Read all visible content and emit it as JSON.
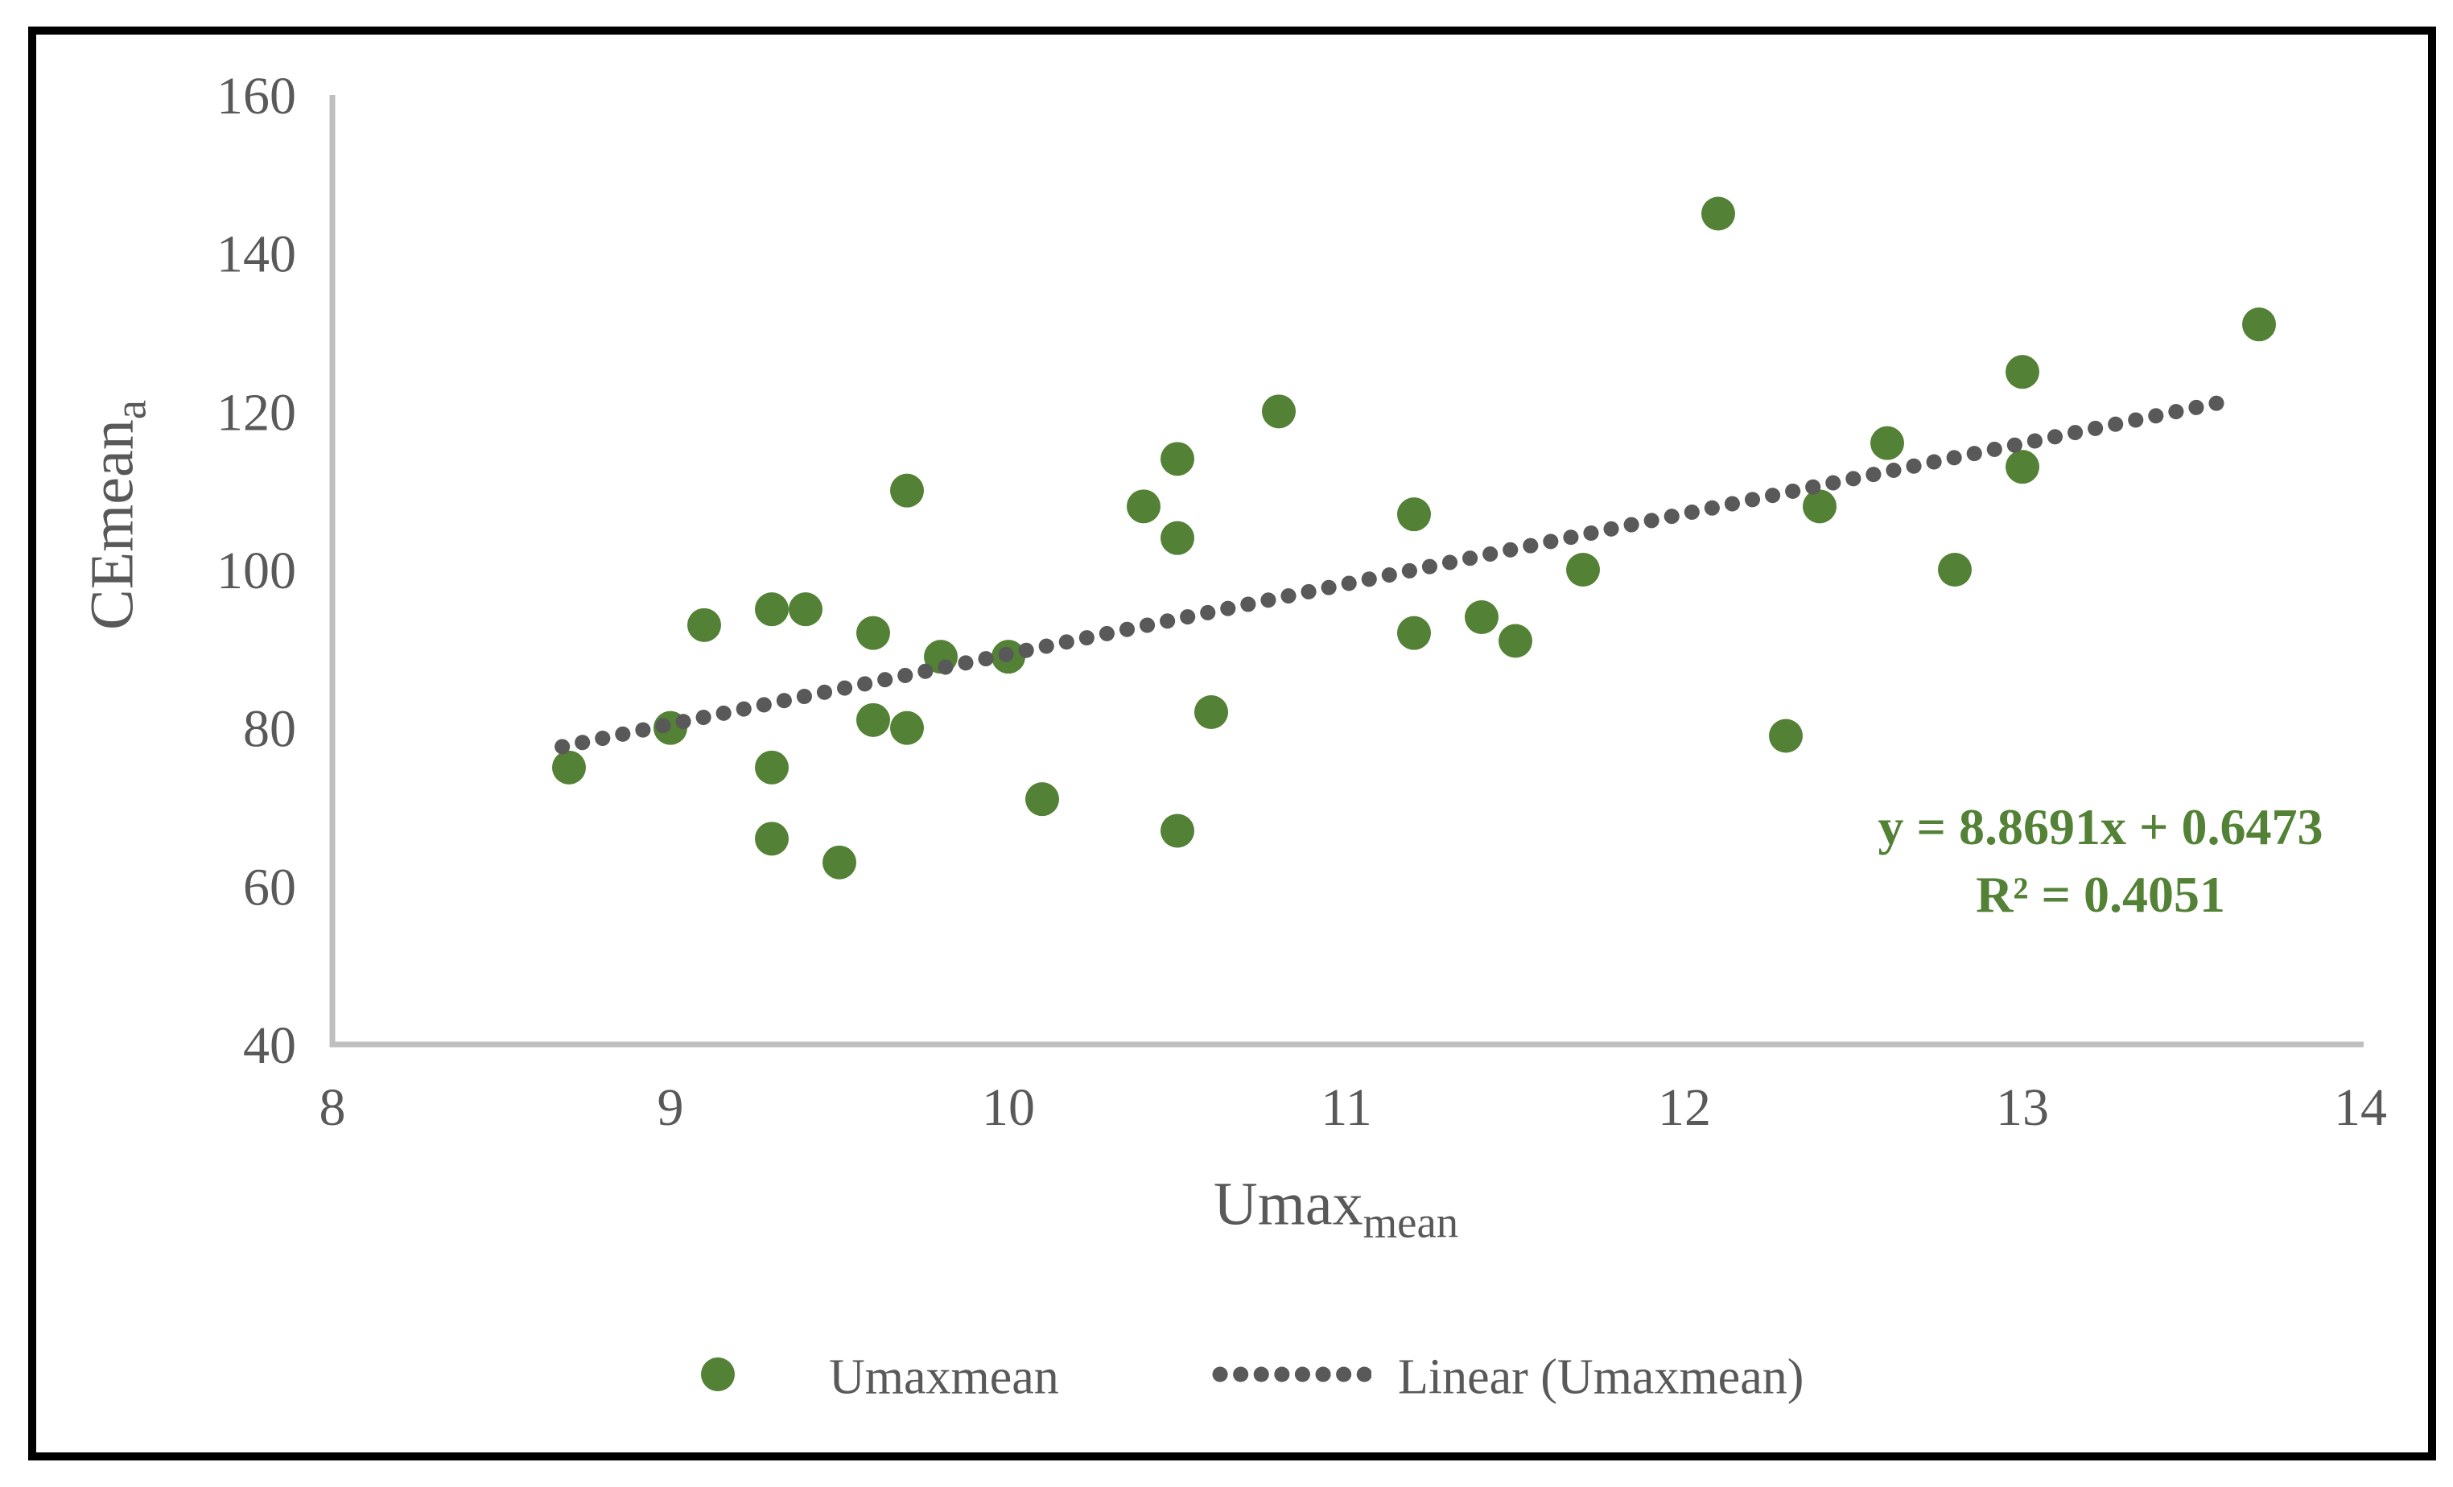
{
  "chart_data": {
    "type": "scatter",
    "title": "",
    "xlabel": {
      "text": "Umax",
      "subscript": "mean"
    },
    "ylabel": {
      "text": "CEmean",
      "subscript": "a"
    },
    "xlim": [
      8,
      14
    ],
    "ylim": [
      40,
      160
    ],
    "x_ticks": [
      "8",
      "9",
      "10",
      "11",
      "12",
      "13",
      "14"
    ],
    "y_ticks": [
      "40",
      "60",
      "80",
      "100",
      "120",
      "140",
      "160"
    ],
    "grid": false,
    "series": [
      {
        "name": "Umaxmean",
        "marker": "circle",
        "color": "#538135",
        "points": [
          [
            8.7,
            75
          ],
          [
            9.0,
            80
          ],
          [
            9.1,
            93
          ],
          [
            9.3,
            95
          ],
          [
            9.3,
            75
          ],
          [
            9.3,
            66
          ],
          [
            9.4,
            95
          ],
          [
            9.5,
            63
          ],
          [
            9.6,
            92
          ],
          [
            9.6,
            81
          ],
          [
            9.7,
            110
          ],
          [
            9.7,
            80
          ],
          [
            9.8,
            89
          ],
          [
            10.0,
            89
          ],
          [
            10.1,
            71
          ],
          [
            10.4,
            108
          ],
          [
            10.5,
            114
          ],
          [
            10.5,
            104
          ],
          [
            10.5,
            67
          ],
          [
            10.6,
            82
          ],
          [
            10.8,
            120
          ],
          [
            11.2,
            107
          ],
          [
            11.2,
            92
          ],
          [
            11.4,
            94
          ],
          [
            11.5,
            91
          ],
          [
            11.7,
            100
          ],
          [
            12.1,
            145
          ],
          [
            12.3,
            79
          ],
          [
            12.4,
            108
          ],
          [
            12.6,
            116
          ],
          [
            12.8,
            100
          ],
          [
            13.0,
            125
          ],
          [
            13.0,
            113
          ],
          [
            13.7,
            131
          ]
        ]
      }
    ],
    "trendline": {
      "label": "Linear (Umaxmean)",
      "style": "dotted",
      "color": "#595959",
      "slope": 8.8691,
      "intercept": 0.6473,
      "r_squared": 0.4051,
      "x_start": 8.68,
      "x_end": 13.62,
      "equation_line1": "y = 8.8691x + 0.6473",
      "equation_line2": "R² = 0.4051"
    },
    "legend": {
      "position": "bottom",
      "items": [
        {
          "label": "Umaxmean",
          "marker": "circle",
          "color": "#538135"
        },
        {
          "label": "Linear (Umaxmean)",
          "marker": "dotted-line",
          "color": "#595959"
        }
      ]
    },
    "colors": {
      "marker": "#538135",
      "trend": "#595959",
      "axis_line": "#BFBFBF",
      "tick_text": "#595959",
      "title_text": "#595959",
      "equation_text": "#538135",
      "frame_border": "#000000",
      "background": "#FFFFFF"
    }
  }
}
